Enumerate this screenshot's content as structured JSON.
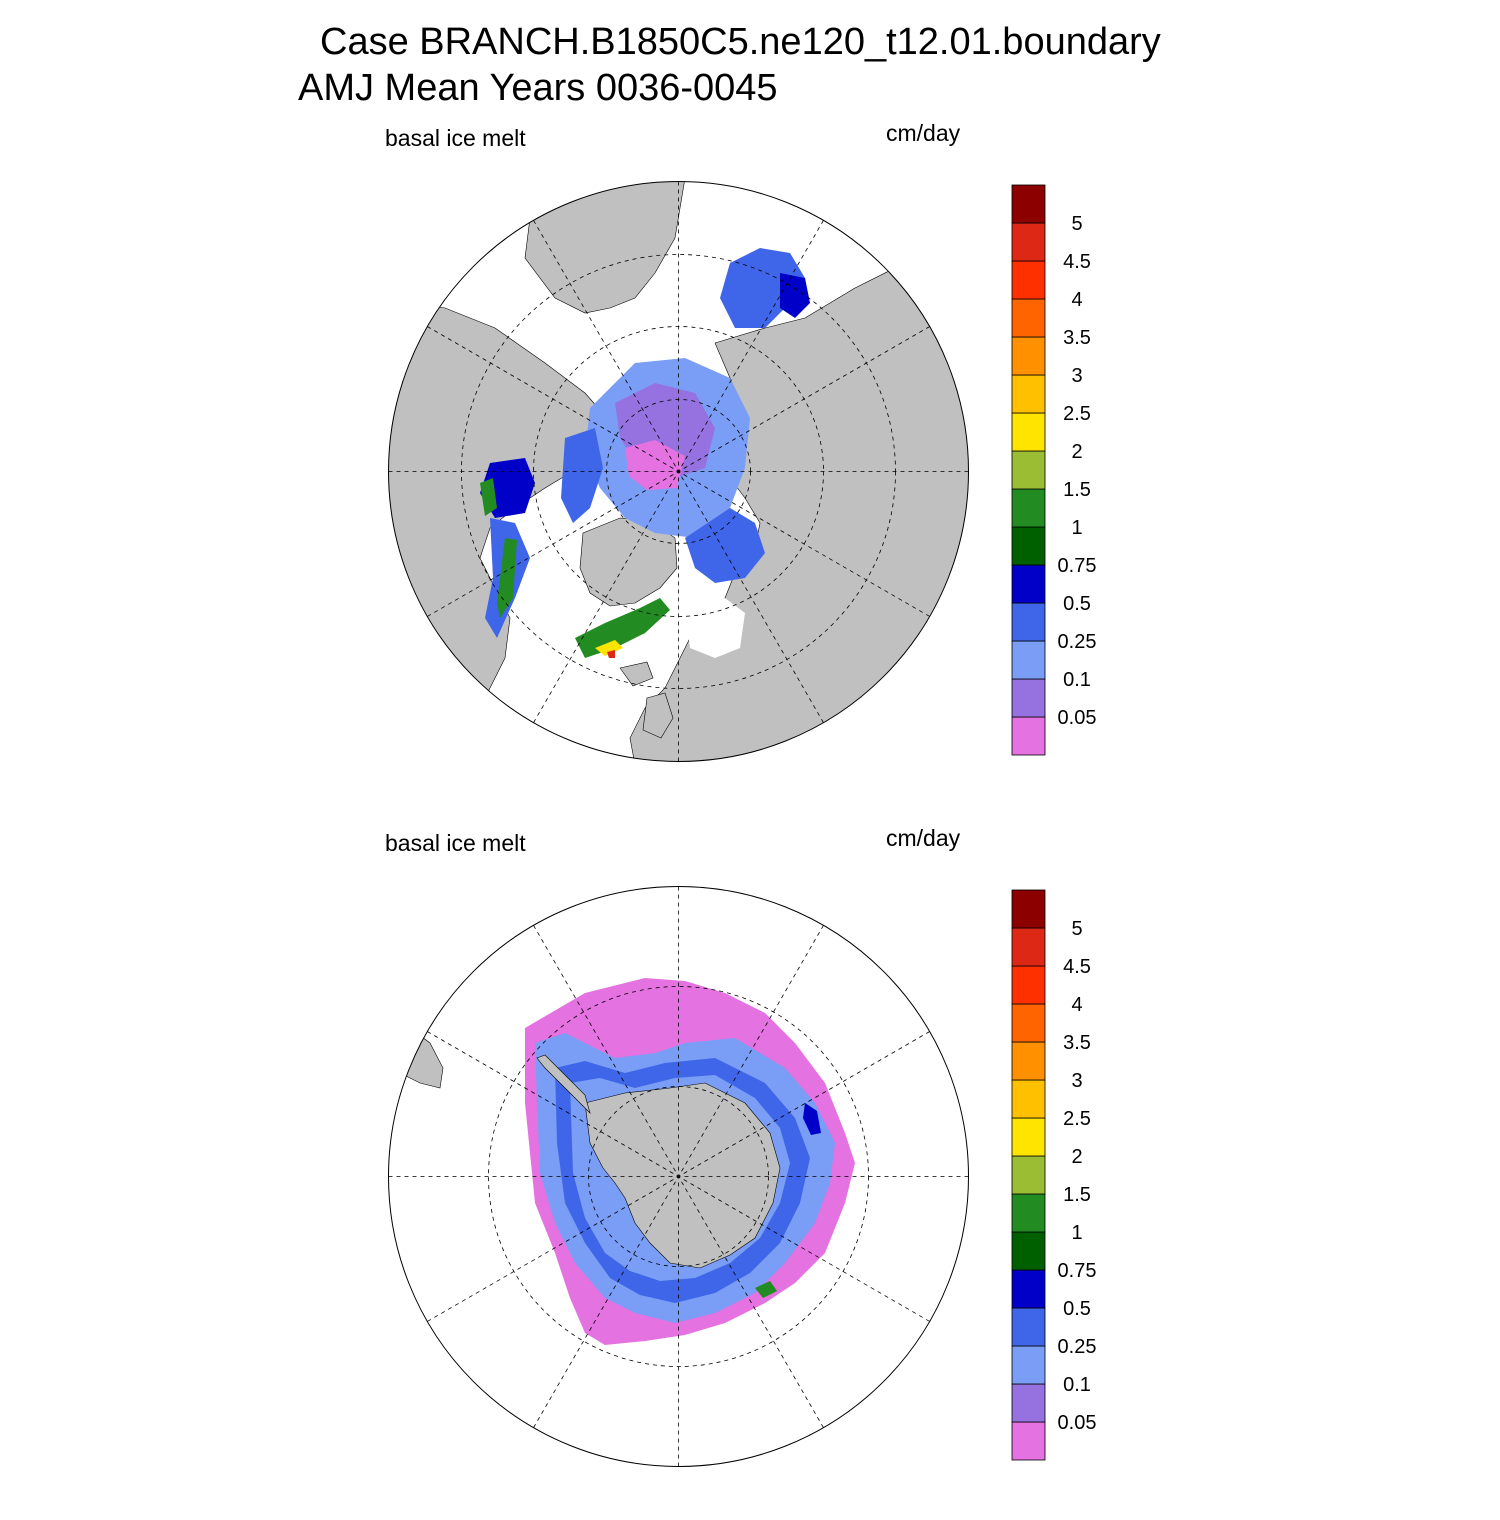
{
  "title": {
    "line1": "Case BRANCH.B1850C5.ne120_t12.01.boundary",
    "line2": "AMJ Mean   Years 0036-0045"
  },
  "colors": {
    "land": "#c0c0c0",
    "ocean": "#ffffff",
    "levels": [
      "#e472e0",
      "#9572e0",
      "#7a9ef5",
      "#3f66e8",
      "#0000c8",
      "#006000",
      "#228b22",
      "#9bbd34",
      "#ffe400",
      "#ffc000",
      "#ff9000",
      "#ff6400",
      "#ff3000",
      "#dc2814",
      "#8c0000"
    ]
  },
  "colorbar": {
    "tick_labels": [
      "0.05",
      "0.1",
      "0.25",
      "0.5",
      "0.75",
      "1",
      "1.5",
      "2",
      "2.5",
      "3",
      "3.5",
      "4",
      "4.5",
      "5"
    ]
  },
  "panels": [
    {
      "id": "north",
      "hemisphere": "Northern Hemisphere",
      "variable_label": "basal ice melt",
      "units_label": "cm/day"
    },
    {
      "id": "south",
      "hemisphere": "Southern Hemisphere",
      "variable_label": "basal ice melt",
      "units_label": "cm/day"
    }
  ]
}
